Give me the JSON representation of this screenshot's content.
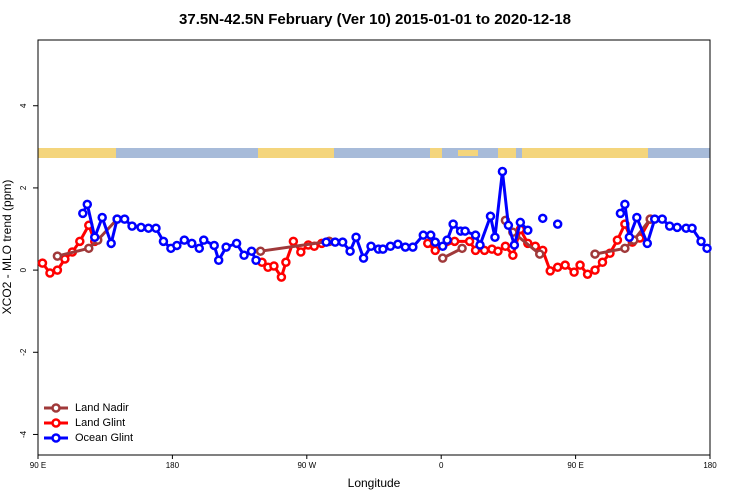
{
  "chart_data": {
    "type": "line",
    "title": "37.5N-42.5N February (Ver 10)   2015-01-01 to 2020-12-18",
    "x_label": "Longitude",
    "y_label": "XCO2 - MLO trend (ppm)",
    "xlim": [
      90,
      540
    ],
    "xticks": [
      {
        "value": 90,
        "label": "90 E"
      },
      180,
      {
        "value": 270,
        "label": "90 W"
      },
      {
        "value": 360,
        "label": "0"
      },
      {
        "value": 450,
        "label": "90 E"
      },
      {
        "value": 540,
        "label": "180"
      }
    ],
    "ylim": [
      -4.5,
      5.6
    ],
    "yticks": [
      -4,
      -2,
      0,
      2,
      4
    ],
    "legend": "bottom-left",
    "series": [
      {
        "name": "Land Glint",
        "color": "#ff0000",
        "x": [
          93,
          98,
          103,
          108,
          113,
          118,
          124,
          128,
          184,
          240,
          244,
          248,
          253,
          256,
          261,
          266,
          271,
          275,
          280,
          285,
          315,
          351,
          356,
          369,
          379,
          383,
          389,
          394,
          398,
          403,
          408,
          413,
          418,
          423,
          428,
          433,
          438,
          443,
          449,
          453,
          458,
          463,
          468,
          473,
          478,
          483,
          488,
          493,
          500
        ],
        "values": [
          0.17,
          -0.07,
          0,
          0.27,
          0.44,
          0.7,
          1.09,
          0.7,
          null,
          0.19,
          0.07,
          0.1,
          -0.17,
          0.19,
          0.7,
          0.44,
          0.61,
          0.58,
          0.65,
          0.7,
          null,
          0.65,
          0.48,
          0.7,
          0.7,
          0.48,
          0.48,
          0.51,
          0.46,
          0.58,
          0.36,
          0.99,
          0.65,
          0.58,
          0.48,
          -0.02,
          0.07,
          0.12,
          -0.05,
          0.12,
          -0.1,
          0,
          0.19,
          0.41,
          0.73,
          1.12,
          0.68,
          0.78,
          1.24
        ]
      },
      {
        "name": "Land Nadir",
        "color": "#a0393a",
        "x": [
          103,
          124,
          130,
          143,
          190,
          239,
          285,
          328,
          361,
          374,
          390,
          403,
          408,
          426,
          440,
          463,
          483,
          489,
          500
        ],
        "values": [
          0.34,
          0.53,
          0.73,
          1.24,
          null,
          0.46,
          0.7,
          null,
          0.29,
          0.53,
          null,
          1.21,
          0.92,
          0.39,
          null,
          0.39,
          0.53,
          0.73,
          1.24
        ]
      },
      {
        "name": "Ocean Glint",
        "color": "#0000ff",
        "x": [
          120,
          123,
          128,
          133,
          139,
          143,
          148,
          153,
          159,
          164,
          169,
          174,
          179,
          183,
          188,
          193,
          198,
          201,
          208,
          211,
          216,
          223,
          228,
          233,
          236,
          259,
          283,
          289,
          294,
          299,
          303,
          308,
          313,
          318,
          321,
          326,
          331,
          336,
          341,
          348,
          353,
          356,
          361,
          364,
          368,
          373,
          376,
          383,
          386,
          393,
          396,
          401,
          405,
          409,
          413,
          418,
          423,
          428,
          433,
          438,
          459,
          480,
          483,
          486,
          491,
          498,
          503,
          508,
          513,
          518,
          524,
          528,
          534,
          538
        ],
        "values": [
          1.38,
          1.6,
          0.8,
          1.28,
          0.65,
          1.24,
          1.24,
          1.07,
          1.04,
          1.02,
          1.02,
          0.7,
          0.53,
          0.6,
          0.73,
          0.65,
          0.53,
          0.73,
          0.6,
          0.24,
          0.56,
          0.65,
          0.36,
          0.46,
          0.24,
          null,
          0.68,
          0.68,
          0.68,
          0.46,
          0.8,
          0.29,
          0.58,
          0.51,
          0.51,
          0.58,
          0.63,
          0.56,
          0.56,
          0.85,
          0.85,
          0.68,
          0.58,
          0.73,
          1.12,
          0.95,
          0.95,
          0.85,
          0.61,
          1.31,
          0.8,
          2.4,
          1.09,
          0.61,
          1.16,
          0.97,
          null,
          1.26,
          null,
          1.12,
          null,
          1.38,
          1.6,
          0.8,
          1.28,
          0.65,
          1.24,
          1.24,
          1.07,
          1.04,
          1.02,
          1.02,
          0.7,
          0.53
        ]
      }
    ]
  }
}
